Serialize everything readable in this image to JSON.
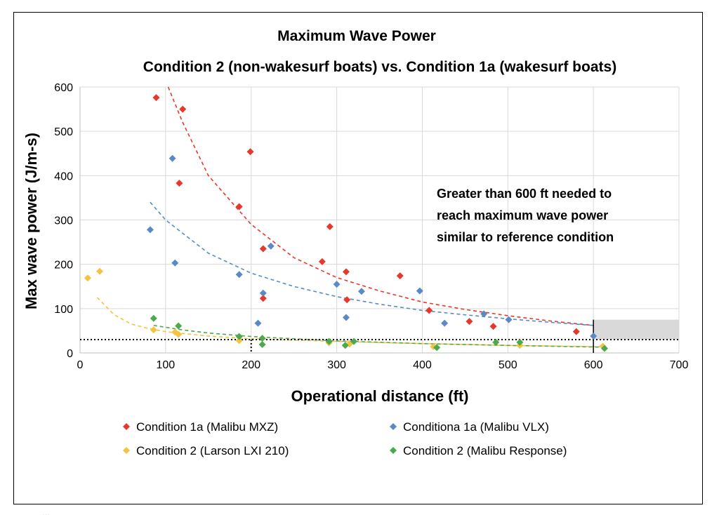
{
  "chart_data": {
    "type": "scatter",
    "title": "Maximum Wave Power",
    "subtitle": "Condition 2 (non-wakesurf boats) vs. Condition 1a (wakesurf boats)",
    "xlabel": "Operational distance (ft)",
    "ylabel": "Max wave power (J/m-s)",
    "xlim": [
      0,
      700
    ],
    "ylim": [
      0,
      600
    ],
    "xticks": [
      0,
      100,
      200,
      300,
      400,
      500,
      600,
      700
    ],
    "yticks": [
      0,
      100,
      200,
      300,
      400,
      500,
      600
    ],
    "grid": true,
    "legend_position": "bottom",
    "annotation": [
      "Greater than 600 ft needed to",
      "reach maximum wave power",
      "similar to reference condition"
    ],
    "reference_line_y": 30,
    "reference_vline_x": 200,
    "marker_vline_x": 600,
    "highlight_region": {
      "x": [
        600,
        700
      ],
      "y": [
        30,
        75
      ],
      "color": "#d9d9d9"
    },
    "series": [
      {
        "name": "Condition 1a (Malibu MXZ)",
        "color": "#e8372b",
        "points": [
          [
            89,
            576
          ],
          [
            120,
            550
          ],
          [
            116,
            383
          ],
          [
            199,
            454
          ],
          [
            186,
            330
          ],
          [
            292,
            285
          ],
          [
            214,
            235
          ],
          [
            214,
            123
          ],
          [
            283,
            206
          ],
          [
            311,
            183
          ],
          [
            312,
            120
          ],
          [
            374,
            174
          ],
          [
            408,
            96
          ],
          [
            455,
            71
          ],
          [
            483,
            60
          ],
          [
            580,
            48
          ]
        ],
        "trend": [
          [
            103,
            600
          ],
          [
            120,
            520
          ],
          [
            150,
            400
          ],
          [
            200,
            290
          ],
          [
            250,
            215
          ],
          [
            300,
            170
          ],
          [
            350,
            140
          ],
          [
            400,
            115
          ],
          [
            450,
            98
          ],
          [
            500,
            84
          ],
          [
            550,
            72
          ],
          [
            600,
            62
          ]
        ]
      },
      {
        "name": "Conditiona 1a (Malibu VLX)",
        "color": "#5a8ac6",
        "points": [
          [
            82,
            278
          ],
          [
            108,
            439
          ],
          [
            111,
            203
          ],
          [
            186,
            177
          ],
          [
            208,
            67
          ],
          [
            214,
            135
          ],
          [
            223,
            241
          ],
          [
            300,
            155
          ],
          [
            311,
            80
          ],
          [
            329,
            139
          ],
          [
            397,
            140
          ],
          [
            426,
            67
          ],
          [
            472,
            88
          ],
          [
            501,
            75
          ],
          [
            600,
            38
          ]
        ],
        "trend": [
          [
            82,
            340
          ],
          [
            100,
            300
          ],
          [
            150,
            225
          ],
          [
            200,
            180
          ],
          [
            250,
            150
          ],
          [
            300,
            127
          ],
          [
            350,
            110
          ],
          [
            400,
            96
          ],
          [
            450,
            86
          ],
          [
            500,
            77
          ],
          [
            550,
            69
          ],
          [
            600,
            62
          ]
        ]
      },
      {
        "name": "Condition 2 (Larson LXI 210)",
        "color": "#f5c342",
        "points": [
          [
            9,
            169
          ],
          [
            23,
            184
          ],
          [
            86,
            52
          ],
          [
            111,
            47
          ],
          [
            115,
            42
          ],
          [
            186,
            28
          ],
          [
            291,
            23
          ],
          [
            315,
            20
          ],
          [
            413,
            14
          ],
          [
            514,
            17
          ],
          [
            611,
            15
          ]
        ],
        "trend": [
          [
            20,
            125
          ],
          [
            40,
            86
          ],
          [
            60,
            65
          ],
          [
            80,
            55
          ],
          [
            100,
            48
          ],
          [
            150,
            38
          ],
          [
            200,
            32
          ],
          [
            300,
            26
          ],
          [
            400,
            21
          ],
          [
            500,
            17
          ],
          [
            611,
            14
          ]
        ]
      },
      {
        "name": "Condition 2 (Malibu Response)",
        "color": "#4caa4c",
        "points": [
          [
            86,
            78
          ],
          [
            115,
            61
          ],
          [
            186,
            37
          ],
          [
            213,
            33
          ],
          [
            213,
            19
          ],
          [
            291,
            26
          ],
          [
            310,
            17
          ],
          [
            320,
            26
          ],
          [
            417,
            12
          ],
          [
            486,
            24
          ],
          [
            514,
            24
          ],
          [
            613,
            10
          ]
        ],
        "trend": [
          [
            86,
            62
          ],
          [
            120,
            52
          ],
          [
            150,
            45
          ],
          [
            200,
            37
          ],
          [
            250,
            32
          ],
          [
            300,
            27
          ],
          [
            400,
            21
          ],
          [
            500,
            17
          ],
          [
            613,
            13
          ]
        ]
      }
    ]
  },
  "caption_fragment": "…"
}
